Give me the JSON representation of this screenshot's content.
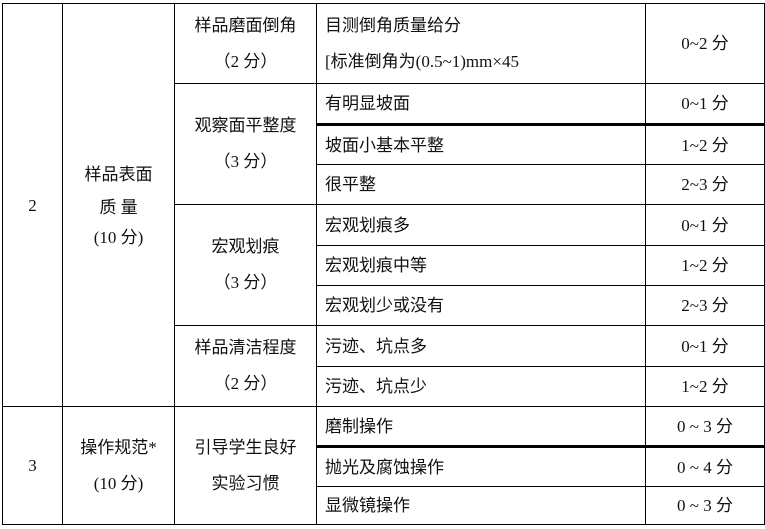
{
  "sections": [
    {
      "number": "2",
      "category": [
        "样品表面",
        "质 量",
        "(10 分)"
      ],
      "items": [
        {
          "name": [
            "样品磨面倒角",
            "（2 分）"
          ],
          "criteria": [
            {
              "text": [
                "目测倒角质量给分",
                "[标准倒角为(0.5~1)mm×45"
              ],
              "score": "0~2 分"
            }
          ]
        },
        {
          "name": [
            "观察面平整度",
            "（3 分）"
          ],
          "criteria": [
            {
              "text": [
                "有明显坡面"
              ],
              "score": "0~1 分"
            },
            {
              "text": [
                "坡面小基本平整"
              ],
              "score": "1~2 分"
            },
            {
              "text": [
                "很平整"
              ],
              "score": "2~3 分"
            }
          ]
        },
        {
          "name": [
            "宏观划痕",
            "（3 分）"
          ],
          "criteria": [
            {
              "text": [
                "宏观划痕多"
              ],
              "score": "0~1 分"
            },
            {
              "text": [
                "宏观划痕中等"
              ],
              "score": "1~2 分"
            },
            {
              "text": [
                "宏观划少或没有"
              ],
              "score": "2~3 分"
            }
          ]
        },
        {
          "name": [
            "样品清洁程度",
            "（2 分）"
          ],
          "criteria": [
            {
              "text": [
                "污迹、坑点多"
              ],
              "score": "0~1 分"
            },
            {
              "text": [
                "污迹、坑点少"
              ],
              "score": "1~2 分"
            }
          ]
        }
      ]
    },
    {
      "number": "3",
      "category": [
        "操作规范*",
        "(10 分)"
      ],
      "items": [
        {
          "name": [
            "引导学生良好",
            "实验习惯"
          ],
          "criteria": [
            {
              "text": [
                "磨制操作"
              ],
              "score": "0 ~ 3 分"
            },
            {
              "text": [
                "抛光及腐蚀操作"
              ],
              "score": "0 ~ 4 分"
            },
            {
              "text": [
                "显微镜操作"
              ],
              "score": "0 ~ 3 分"
            }
          ]
        }
      ]
    }
  ]
}
